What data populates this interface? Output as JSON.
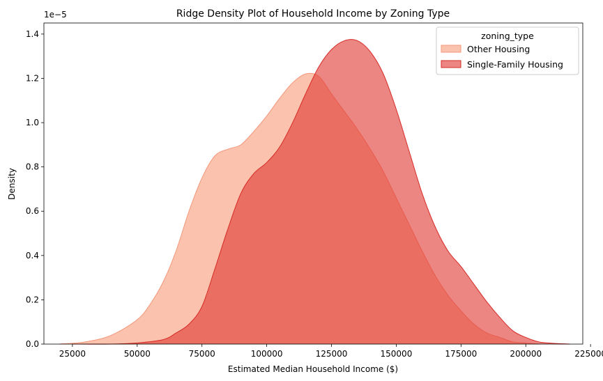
{
  "chart_data": {
    "type": "area",
    "title": "Ridge Density Plot of Household Income by Zoning Type",
    "xlabel": "Estimated Median Household Income ($)",
    "ylabel": "Density",
    "y_offset_label": "1e−5",
    "xlim": [
      14000,
      222000
    ],
    "ylim": [
      0,
      1.45
    ],
    "x_ticks": [
      25000,
      50000,
      75000,
      100000,
      125000,
      150000,
      175000,
      200000,
      225000
    ],
    "y_ticks": [
      0.0,
      0.2,
      0.4,
      0.6,
      0.8,
      1.0,
      1.2,
      1.4
    ],
    "y_tick_labels": [
      "0.0",
      "0.2",
      "0.4",
      "0.6",
      "0.8",
      "1.0",
      "1.2",
      "1.4"
    ],
    "grid": false,
    "legend": {
      "title": "zoning_type",
      "position": "top-right"
    },
    "series": [
      {
        "name": "Other Housing",
        "fill": "#f9a98a",
        "stroke": "#f4977a",
        "x": [
          20000,
          30000,
          40000,
          50000,
          55000,
          60000,
          65000,
          70000,
          75000,
          80000,
          85000,
          90000,
          95000,
          100000,
          105000,
          110000,
          115000,
          120000,
          125000,
          130000,
          135000,
          140000,
          145000,
          150000,
          155000,
          160000,
          165000,
          170000,
          175000,
          180000,
          185000,
          190000,
          195000,
          200000,
          205000
        ],
        "y": [
          0.0,
          0.01,
          0.04,
          0.11,
          0.18,
          0.28,
          0.42,
          0.6,
          0.75,
          0.85,
          0.88,
          0.9,
          0.96,
          1.03,
          1.11,
          1.18,
          1.22,
          1.21,
          1.13,
          1.05,
          0.97,
          0.88,
          0.78,
          0.66,
          0.54,
          0.42,
          0.31,
          0.22,
          0.15,
          0.09,
          0.05,
          0.03,
          0.01,
          0.005,
          0.0
        ]
      },
      {
        "name": "Single-Family Housing",
        "fill": "#e03530",
        "stroke": "#d62b26",
        "x": [
          25000,
          40000,
          50000,
          60000,
          65000,
          70000,
          75000,
          80000,
          85000,
          90000,
          95000,
          100000,
          105000,
          110000,
          115000,
          120000,
          125000,
          130000,
          135000,
          140000,
          145000,
          150000,
          155000,
          160000,
          165000,
          170000,
          175000,
          180000,
          185000,
          190000,
          195000,
          200000,
          205000,
          210000,
          217000
        ],
        "y": [
          0.0,
          0.0,
          0.005,
          0.02,
          0.05,
          0.09,
          0.17,
          0.34,
          0.52,
          0.68,
          0.77,
          0.82,
          0.89,
          1.0,
          1.13,
          1.25,
          1.33,
          1.37,
          1.37,
          1.32,
          1.22,
          1.06,
          0.87,
          0.68,
          0.53,
          0.42,
          0.35,
          0.27,
          0.19,
          0.12,
          0.06,
          0.03,
          0.01,
          0.004,
          0.0
        ]
      }
    ]
  }
}
